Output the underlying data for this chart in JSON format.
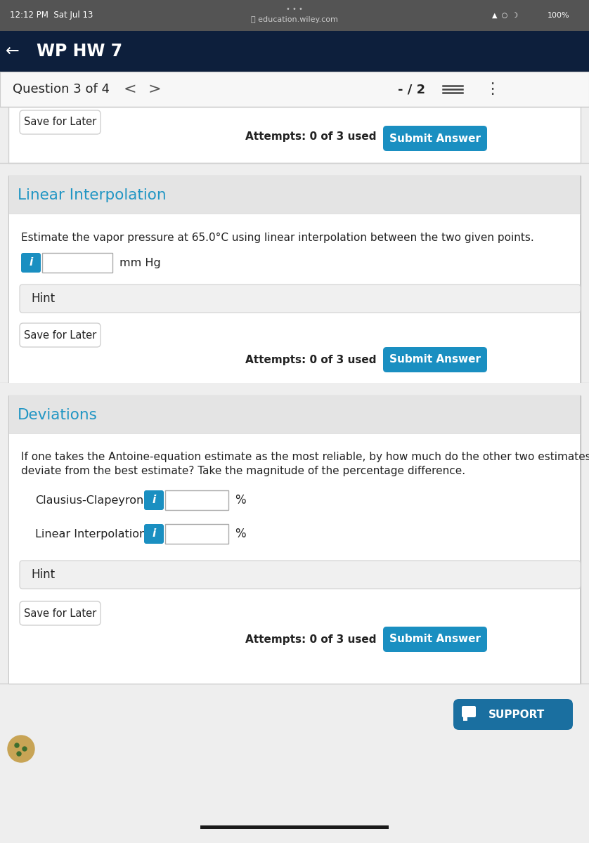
{
  "status_bar_text": "12:12 PM  Sat Jul 13",
  "status_bar_url": "education.wiley.com",
  "nav_title": "WP HW 7",
  "question_label": "Question 3 of 4",
  "score_label": "- / 2",
  "section1_title": "Linear Interpolation",
  "section1_question": "Estimate the vapor pressure at 65.0°C using linear interpolation between the two given points.",
  "section1_unit": "mm Hg",
  "hint_text": "Hint",
  "save_later_text": "Save for Later",
  "attempts_text": "Attempts: 0 of 3 used",
  "submit_text": "Submit Answer",
  "section2_title": "Deviations",
  "section2_question_line1": "If one takes the Antoine-equation estimate as the most reliable, by how much do the other two estimates",
  "section2_question_line2": "deviate from the best estimate? Take the magnitude of the percentage difference.",
  "label1": "Clausius-Clapeyron",
  "label2": "Linear Interpolation",
  "percent_symbol": "%",
  "support_text": "SUPPORT",
  "bg_color": "#eeeeee",
  "status_bar_bg": "#545454",
  "nav_bar_bg": "#0d1f3c",
  "nav_text_color": "#ffffff",
  "section_header_bg": "#e4e4e4",
  "section_body_bg": "#ffffff",
  "section_title_color": "#2196c4",
  "body_text_color": "#222222",
  "blue_btn_color": "#1a8fc1",
  "hint_bg": "#f0f0f0",
  "save_btn_bg": "#ffffff",
  "input_bg": "#ffffff",
  "input_border": "#aaaaaa",
  "info_btn_color": "#1a8fc1",
  "divider_color": "#cccccc",
  "support_btn_color": "#1a6fa0",
  "card_border_color": "#d0d0d0",
  "card_outer_border": "#c8c8c8"
}
